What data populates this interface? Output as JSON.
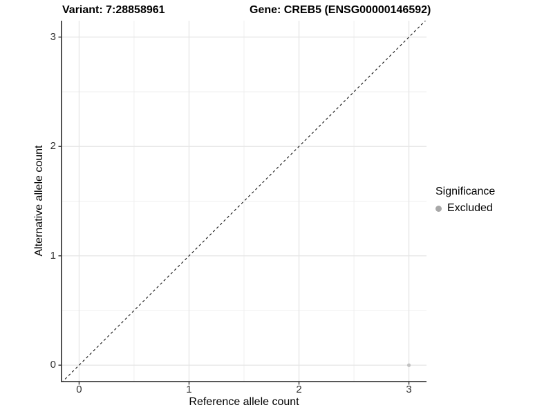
{
  "header": {
    "title_left": "Variant: 7:28858961",
    "title_right": "Gene: CREB5 (ENSG00000146592)"
  },
  "legend": {
    "title": "Significance",
    "entries": [
      {
        "label": "Excluded",
        "color": "#a8a8a8"
      }
    ]
  },
  "colors": {
    "grid_major": "#e5e5e5",
    "grid_minor": "#efefef",
    "axis_line": "#404040",
    "tick_mark": "#333333",
    "tick_label": "#333333",
    "reference_line": "#1a1a1a",
    "point": "#c2c2c2",
    "background": "#ffffff"
  },
  "chart_data": {
    "type": "scatter",
    "title": "Variant: 7:28858961   Gene: CREB5 (ENSG00000146592)",
    "xlabel": "Reference allele count",
    "ylabel": "Alternative allele count",
    "xlim": [
      -0.16,
      3.16
    ],
    "ylim": [
      -0.15,
      3.15
    ],
    "x_ticks": [
      0,
      1,
      2,
      3
    ],
    "y_ticks": [
      0,
      1,
      2,
      3
    ],
    "x_minor_ticks": [
      0.5,
      1.5,
      2.5
    ],
    "y_minor_ticks": [
      0.5,
      1.5,
      2.5
    ],
    "grid": true,
    "legend_position": "right",
    "reference_line": {
      "type": "abline",
      "slope": 1,
      "intercept": 0,
      "style": "dashed"
    },
    "series": [
      {
        "name": "Excluded",
        "points": [
          {
            "x": 3,
            "y": 0
          }
        ]
      }
    ]
  }
}
